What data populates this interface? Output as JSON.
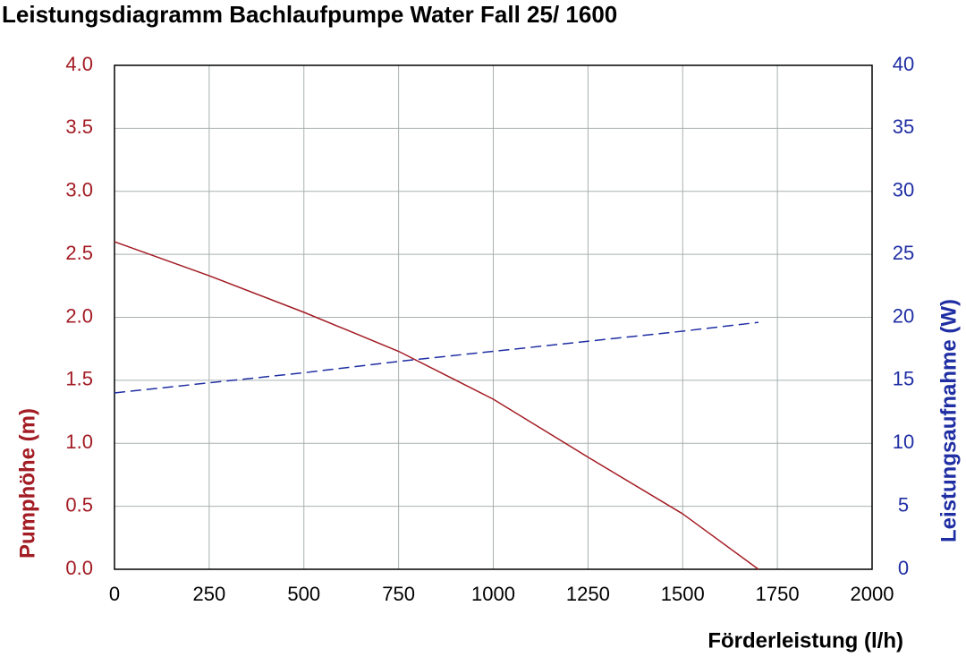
{
  "chart_data": {
    "type": "line",
    "title": "Leistungsdiagramm Bachlaufpumpe Water Fall 25/ 1600",
    "xlabel": "Förderleistung (l/h)",
    "ylabel": "Pumphöhe (m)",
    "y2label": "Leistungsaufnahme (W)",
    "x": [
      0,
      250,
      500,
      750,
      1000,
      1250,
      1500,
      1700
    ],
    "series": [
      {
        "color": "#a31c24",
        "values": [
          2.6,
          2.33,
          2.04,
          1.73,
          1.35,
          0.89,
          0.44,
          0
        ],
        "axis": "y"
      },
      {
        "color": "#1f2ea3",
        "values": [
          14,
          14.8,
          15.6,
          16.5,
          17.3,
          18.1,
          18.9,
          19.6
        ],
        "axis": "y2",
        "dashed": true
      }
    ],
    "xlim": [
      0,
      2000
    ],
    "xticks": [
      0,
      250,
      500,
      750,
      1000,
      1250,
      1500,
      1750,
      2000
    ],
    "ylim": [
      0,
      4
    ],
    "yticks": [
      {
        "value": 0,
        "label": "0.0"
      },
      0.5,
      {
        "value": 1,
        "label": "1.0"
      },
      1.5,
      {
        "value": 2,
        "label": "2.0"
      },
      2.5,
      {
        "value": 3,
        "label": "3.0"
      },
      3.5,
      {
        "value": 4,
        "label": "4.0"
      }
    ],
    "y2lim": [
      0,
      40
    ],
    "y2ticks": [
      0,
      5,
      10,
      15,
      20,
      25,
      30,
      35,
      40
    ],
    "grid": true
  }
}
